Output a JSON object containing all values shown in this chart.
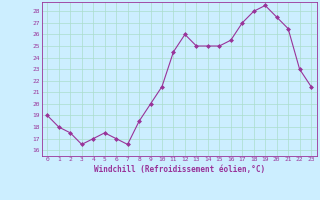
{
  "x": [
    0,
    1,
    2,
    3,
    4,
    5,
    6,
    7,
    8,
    9,
    10,
    11,
    12,
    13,
    14,
    15,
    16,
    17,
    18,
    19,
    20,
    21,
    22,
    23
  ],
  "y": [
    19,
    18,
    17.5,
    16.5,
    17,
    17.5,
    17,
    16.5,
    18.5,
    20,
    21.5,
    24.5,
    26,
    25,
    25,
    25,
    25.5,
    27,
    28,
    28.5,
    27.5,
    26.5,
    23,
    21.5
  ],
  "line_color": "#993399",
  "marker": "D",
  "marker_size": 2,
  "background_color": "#cceeff",
  "grid_color": "#aaddcc",
  "xlabel": "Windchill (Refroidissement éolien,°C)",
  "xlabel_color": "#993399",
  "tick_color": "#993399",
  "ylim_min": 15.5,
  "ylim_max": 28.8,
  "yticks": [
    16,
    17,
    18,
    19,
    20,
    21,
    22,
    23,
    24,
    25,
    26,
    27,
    28
  ],
  "xlim_min": -0.5,
  "xlim_max": 23.5,
  "xticks": [
    0,
    1,
    2,
    3,
    4,
    5,
    6,
    7,
    8,
    9,
    10,
    11,
    12,
    13,
    14,
    15,
    16,
    17,
    18,
    19,
    20,
    21,
    22,
    23
  ]
}
